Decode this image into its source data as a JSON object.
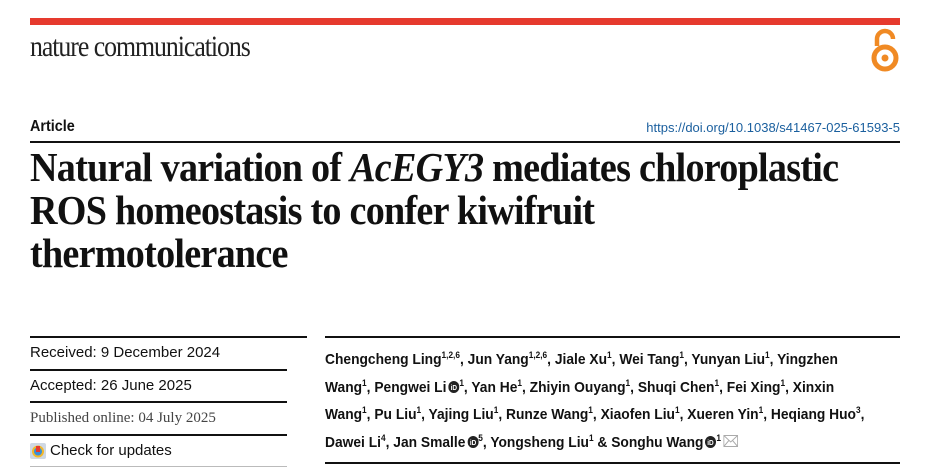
{
  "journal": "nature communications",
  "article_type": "Article",
  "doi": "https://doi.org/10.1038/s41467-025-61593-5",
  "title": {
    "pre": "Natural variation of ",
    "gene": "AcEGY3",
    "post": " mediates chloroplastic ROS homeostasis to confer kiwifruit thermotolerance"
  },
  "dates": {
    "received": "Received: 9 December 2024",
    "accepted": "Accepted: 26 June 2025",
    "published": "Published online: 04 July 2025"
  },
  "check_updates": "Check for updates",
  "colors": {
    "brand_red": "#e63a2e",
    "open_access": "#f08a24",
    "doi_link": "#1a5f9e"
  },
  "icons": [
    "open-access-icon",
    "orcid-icon",
    "envelope-icon",
    "check-for-updates-icon"
  ],
  "authors": [
    {
      "name": "Chengcheng Ling",
      "sup": "1,2,6"
    },
    {
      "name": "Jun Yang",
      "sup": "1,2,6"
    },
    {
      "name": "Jiale Xu",
      "sup": "1"
    },
    {
      "name": "Wei Tang",
      "sup": "1"
    },
    {
      "name": "Yunyan Liu",
      "sup": "1"
    },
    {
      "name": "Yingzhen Wang",
      "sup": "1"
    },
    {
      "name": "Pengwei Li",
      "sup": "1",
      "orcid": true
    },
    {
      "name": "Yan He",
      "sup": "1"
    },
    {
      "name": "Zhiyin Ouyang",
      "sup": "1"
    },
    {
      "name": "Shuqi Chen",
      "sup": "1"
    },
    {
      "name": "Fei Xing",
      "sup": "1"
    },
    {
      "name": "Xinxin Wang",
      "sup": "1"
    },
    {
      "name": "Pu Liu",
      "sup": "1"
    },
    {
      "name": "Yajing Liu",
      "sup": "1"
    },
    {
      "name": "Runze Wang",
      "sup": "1"
    },
    {
      "name": "Xiaofen Liu",
      "sup": "1"
    },
    {
      "name": "Xueren Yin",
      "sup": "1"
    },
    {
      "name": "Heqiang Huo",
      "sup": "3"
    },
    {
      "name": "Dawei Li",
      "sup": "4"
    },
    {
      "name": "Jan Smalle",
      "sup": "5",
      "orcid": true
    },
    {
      "name": "Yongsheng Liu",
      "sup": "1"
    },
    {
      "name": "Songhu Wang",
      "sup": "1",
      "orcid": true,
      "corresponding": true
    }
  ]
}
